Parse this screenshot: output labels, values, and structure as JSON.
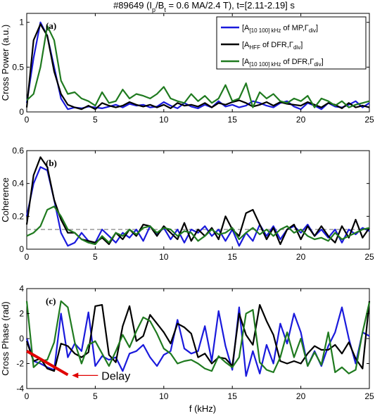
{
  "figure": {
    "title": "#89649 (I_p/B_t = 0.6 MA/2.4 T), t=[2.11-2.19] s",
    "title_parts": {
      "pre": "#89649 (I",
      "sub1": "p",
      "mid": "/B",
      "sub2": "t",
      "post": " = 0.6 MA/2.4 T), t=[2.11-2.19] s"
    },
    "xlabel": "f (kHz)",
    "colors": {
      "blue": "#1a1adc",
      "black": "#000000",
      "green": "#1f7a1f",
      "threshold": "#999999",
      "delay": "#e00000"
    }
  },
  "legend": [
    {
      "color": "#1a1adc",
      "text": "[A[10 100] kHz of MP,Γdiv]",
      "parts": [
        "[A",
        "[10 100] kHz",
        " of MP,Γ",
        "div",
        "]"
      ]
    },
    {
      "color": "#000000",
      "text": "[AHFF of DFR,Γdiv]",
      "parts": [
        "[A",
        "HFF",
        " of DFR,Γ",
        "div",
        "]"
      ]
    },
    {
      "color": "#1f7a1f",
      "text": "[A[10 100] kHz of DFR,Γdiv]",
      "parts": [
        "[A",
        "[10 100] kHz",
        " of DFR,Γ",
        "div",
        "]"
      ]
    }
  ],
  "annotation": {
    "text": "Delay",
    "color": "#e00000"
  },
  "chart_data": [
    {
      "type": "line",
      "panel_label": "(a)",
      "ylabel": "Cross Power (a.u.)",
      "xlim": [
        0,
        25
      ],
      "ylim": [
        0,
        1.1
      ],
      "xticks": [
        0,
        5,
        10,
        15,
        20,
        25
      ],
      "yticks": [
        0,
        0.5,
        1
      ],
      "ytick_labels": [
        "0",
        "0.5",
        "1"
      ],
      "x": [
        0,
        0.5,
        1,
        1.5,
        2,
        2.5,
        3,
        3.5,
        4,
        4.5,
        5,
        5.5,
        6,
        6.5,
        7,
        7.5,
        8,
        8.5,
        9,
        9.5,
        10,
        10.5,
        11,
        11.5,
        12,
        12.5,
        13,
        13.5,
        14,
        14.5,
        15,
        15.5,
        16,
        16.5,
        17,
        17.5,
        18,
        18.5,
        19,
        19.5,
        20,
        20.5,
        21,
        21.5,
        22,
        22.5,
        23,
        23.5,
        24,
        24.5,
        25
      ],
      "series": [
        {
          "color": "blue",
          "values": [
            0.1,
            0.6,
            1.0,
            0.85,
            0.5,
            0.15,
            0.03,
            0.05,
            0.04,
            0.06,
            0.05,
            0.04,
            0.06,
            0.08,
            0.05,
            0.09,
            0.07,
            0.08,
            0.05,
            0.06,
            0.11,
            0.07,
            0.04,
            0.1,
            0.06,
            0.04,
            0.08,
            0.05,
            0.12,
            0.06,
            0.08,
            0.05,
            0.07,
            0.12,
            0.1,
            0.07,
            0.05,
            0.1,
            0.12,
            0.06,
            0.03,
            0.1,
            0.07,
            0.03,
            0.1,
            0.06,
            0.05,
            0.08,
            0.12,
            0.05,
            0.1
          ]
        },
        {
          "color": "black",
          "values": [
            0.05,
            0.8,
            0.98,
            0.85,
            0.45,
            0.2,
            0.08,
            0.05,
            0.03,
            0.07,
            0.03,
            0.1,
            0.07,
            0.05,
            0.07,
            0.11,
            0.08,
            0.06,
            0.08,
            0.05,
            0.08,
            0.04,
            0.1,
            0.07,
            0.08,
            0.06,
            0.1,
            0.05,
            0.1,
            0.08,
            0.11,
            0.13,
            0.1,
            0.06,
            0.08,
            0.11,
            0.07,
            0.11,
            0.09,
            0.08,
            0.07,
            0.11,
            0.08,
            0.05,
            0.1,
            0.08,
            0.04,
            0.1,
            0.05,
            0.07,
            0.05
          ]
        },
        {
          "color": "green",
          "values": [
            0.13,
            0.2,
            0.5,
            0.96,
            0.8,
            0.35,
            0.2,
            0.22,
            0.15,
            0.12,
            0.07,
            0.22,
            0.1,
            0.12,
            0.25,
            0.15,
            0.2,
            0.18,
            0.15,
            0.2,
            0.28,
            0.15,
            0.12,
            0.1,
            0.2,
            0.12,
            0.18,
            0.1,
            0.15,
            0.3,
            0.12,
            0.15,
            0.32,
            0.05,
            0.22,
            0.15,
            0.2,
            0.12,
            0.1,
            0.15,
            0.12,
            0.18,
            0.05,
            0.15,
            0.12,
            0.07,
            0.12,
            0.05,
            0.08,
            0.1,
            0.12
          ]
        }
      ]
    },
    {
      "type": "line",
      "panel_label": "(b)",
      "ylabel": "Coherence",
      "xlim": [
        0,
        25
      ],
      "ylim": [
        0,
        0.6
      ],
      "xticks": [
        0,
        5,
        10,
        15,
        20,
        25
      ],
      "yticks": [
        0,
        0.2,
        0.4,
        0.6
      ],
      "ytick_labels": [
        "0",
        "0.2",
        "0.4",
        "0.6"
      ],
      "threshold": 0.12,
      "x": [
        0,
        0.5,
        1,
        1.5,
        2,
        2.5,
        3,
        3.5,
        4,
        4.5,
        5,
        5.5,
        6,
        6.5,
        7,
        7.5,
        8,
        8.5,
        9,
        9.5,
        10,
        10.5,
        11,
        11.5,
        12,
        12.5,
        13,
        13.5,
        14,
        14.5,
        15,
        15.5,
        16,
        16.5,
        17,
        17.5,
        18,
        18.5,
        19,
        19.5,
        20,
        20.5,
        21,
        21.5,
        22,
        22.5,
        23,
        23.5,
        24,
        24.5,
        25
      ],
      "series": [
        {
          "color": "blue",
          "values": [
            0.2,
            0.4,
            0.5,
            0.48,
            0.3,
            0.1,
            0.02,
            0.04,
            0.1,
            0.05,
            0.04,
            0.12,
            0.08,
            0.04,
            0.1,
            0.07,
            0.12,
            0.05,
            0.14,
            0.09,
            0.13,
            0.06,
            0.12,
            0.04,
            0.12,
            0.1,
            0.14,
            0.08,
            0.12,
            0.05,
            0.12,
            0.02,
            0.1,
            0.05,
            0.15,
            0.08,
            0.14,
            0.06,
            0.12,
            0.14,
            0.1,
            0.15,
            0.08,
            0.12,
            0.07,
            0.12,
            0.04,
            0.12,
            0.09,
            0.13,
            0.11
          ]
        },
        {
          "color": "black",
          "values": [
            0.15,
            0.45,
            0.56,
            0.5,
            0.3,
            0.18,
            0.1,
            0.1,
            0.06,
            0.05,
            0.04,
            0.07,
            0.03,
            0.1,
            0.06,
            0.12,
            0.08,
            0.15,
            0.14,
            0.08,
            0.14,
            0.1,
            0.06,
            0.16,
            0.05,
            0.12,
            0.08,
            0.13,
            0.06,
            0.2,
            0.12,
            0.08,
            0.22,
            0.24,
            0.15,
            0.06,
            0.13,
            0.03,
            0.12,
            0.15,
            0.06,
            0.14,
            0.08,
            0.14,
            0.08,
            0.04,
            0.14,
            0.07,
            0.18,
            0.07,
            0.13
          ]
        },
        {
          "color": "green",
          "values": [
            0.08,
            0.1,
            0.14,
            0.24,
            0.26,
            0.2,
            0.12,
            0.1,
            0.06,
            0.04,
            0.03,
            0.08,
            0.04,
            0.1,
            0.08,
            0.12,
            0.09,
            0.13,
            0.14,
            0.1,
            0.13,
            0.12,
            0.08,
            0.11,
            0.1,
            0.05,
            0.08,
            0.12,
            0.09,
            0.1,
            0.13,
            0.06,
            0.1,
            0.13,
            0.09,
            0.12,
            0.08,
            0.12,
            0.14,
            0.1,
            0.12,
            0.08,
            0.06,
            0.07,
            0.05,
            0.1,
            0.06,
            0.08,
            0.1,
            0.12,
            0.13
          ]
        }
      ]
    },
    {
      "type": "line",
      "panel_label": "(c)",
      "ylabel": "Cross Phase (rad)",
      "xlim": [
        0,
        25
      ],
      "ylim": [
        -4,
        4
      ],
      "xticks": [
        0,
        5,
        10,
        15,
        20,
        25
      ],
      "yticks": [
        -4,
        -2,
        0,
        2,
        4
      ],
      "ytick_labels": [
        "-4",
        "-2",
        "0",
        "2",
        "4"
      ],
      "delay_line": {
        "x": [
          0,
          3
        ],
        "y": [
          -1.0,
          -2.9
        ]
      },
      "x": [
        0,
        0.5,
        1,
        1.5,
        2,
        2.5,
        3,
        3.5,
        4,
        4.5,
        5,
        5.5,
        6,
        6.5,
        7,
        7.5,
        8,
        8.5,
        9,
        9.5,
        10,
        10.5,
        11,
        11.5,
        12,
        12.5,
        13,
        13.5,
        14,
        14.5,
        15,
        15.5,
        16,
        16.5,
        17,
        17.5,
        18,
        18.5,
        19,
        19.5,
        20,
        20.5,
        21,
        21.5,
        22,
        22.5,
        23,
        23.5,
        24,
        24.5,
        25
      ],
      "series": [
        {
          "color": "blue",
          "values": [
            0.0,
            -1.8,
            -2.0,
            -2.3,
            -2.5,
            2.0,
            -1.5,
            -0.4,
            -1.0,
            2.1,
            -2.2,
            -1.4,
            -1.7,
            -1.5,
            -2.6,
            -1.2,
            -1.0,
            -0.5,
            -1.5,
            -2.2,
            -1.3,
            -1.0,
            1.5,
            -0.8,
            -1.2,
            -1.0,
            1.0,
            -1.8,
            2.2,
            -0.6,
            -2.5,
            2.5,
            -3.0,
            -1.0,
            -2.8,
            -0.5,
            -2.0,
            1.2,
            -0.4,
            2.0,
            0.5,
            -2.2,
            -1.0,
            -2.2,
            -0.6,
            0.5,
            2.5,
            0.0,
            -2.0,
            0.5,
            0.2
          ]
        },
        {
          "color": "black",
          "values": [
            -0.2,
            -1.8,
            -1.6,
            -2.4,
            -2.6,
            -0.4,
            -0.6,
            -1.2,
            -1.5,
            -1.1,
            2.6,
            2.7,
            -1.3,
            -1.9,
            1.0,
            2.6,
            -0.2,
            0.2,
            1.9,
            1.2,
            0.5,
            -0.4,
            1.2,
            0.9,
            0.4,
            -1.5,
            -1.2,
            -2.0,
            -1.5,
            -1.6,
            -2.2,
            2.0,
            0.3,
            -0.5,
            2.7,
            1.4,
            0.3,
            -1.8,
            -2.0,
            -1.8,
            -2.0,
            -1.2,
            -0.6,
            -0.9,
            -0.9,
            -0.5,
            -1.2,
            -0.3,
            -1.6,
            -2.4,
            3.0
          ]
        },
        {
          "color": "green",
          "values": [
            3.0,
            -2.3,
            -1.8,
            -1.7,
            -0.3,
            3.0,
            2.5,
            -0.3,
            -2.0,
            -0.5,
            -0.2,
            -1.2,
            -2.2,
            -1.0,
            0.3,
            -0.7,
            0.6,
            1.7,
            1.4,
            0.4,
            -0.8,
            -1.2,
            -2.0,
            -1.8,
            -1.7,
            -2.0,
            -2.4,
            -2.6,
            -1.4,
            -1.9,
            -2.3,
            -1.5,
            2.0,
            2.3,
            -1.9,
            -2.5,
            -2.7,
            -1.5,
            0.5,
            -1.5,
            0.0,
            -2.2,
            -1.1,
            -2.1,
            0.5,
            -2.7,
            -2.3,
            -2.8,
            -2.5,
            0.5,
            2.9
          ]
        }
      ]
    }
  ]
}
